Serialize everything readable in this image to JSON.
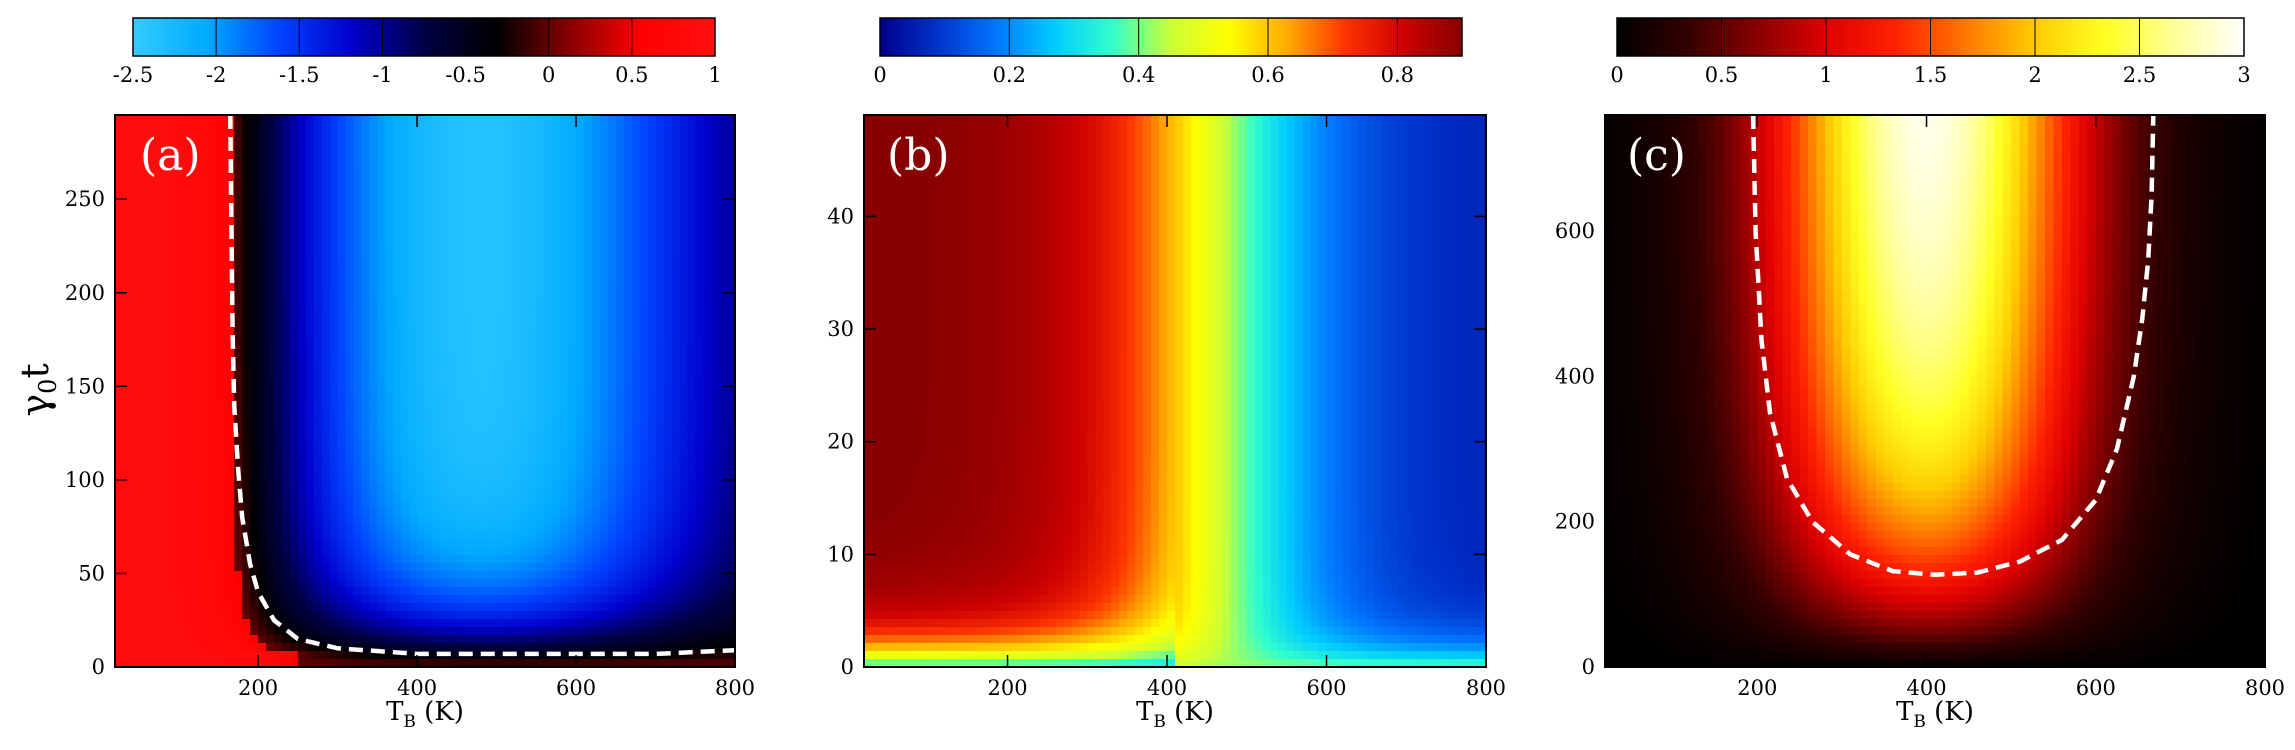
{
  "chart_data": [
    {
      "type": "heatmap",
      "panel_label": "(a)",
      "xlabel": {
        "main": "T",
        "sub": "B",
        "rest": " (K)"
      },
      "ylabel": {
        "main": "γ",
        "sub": "0",
        "rest": "t"
      },
      "xlim": [
        20,
        800
      ],
      "ylim": [
        0,
        295
      ],
      "xticks": [
        200,
        400,
        600,
        800
      ],
      "xtick_labels": [
        "200",
        "400",
        "600",
        "800"
      ],
      "yticks": [
        0,
        50,
        100,
        150,
        200,
        250
      ],
      "ytick_labels": [
        "0",
        "50",
        "100",
        "150",
        "200",
        "250"
      ],
      "colorbar": {
        "min": -2.5,
        "max": 1,
        "ticks": [
          -2.5,
          -2,
          -1.5,
          -1,
          -0.5,
          0,
          0.5,
          1
        ],
        "tick_labels": [
          "-2.5",
          "-2",
          "-1.5",
          "-1",
          "-0.5",
          "0",
          "0.5",
          "1"
        ],
        "colors": [
          "#33ccff",
          "#00aaff",
          "#0044ff",
          "#0000cc",
          "#000044",
          "#000000",
          "#880000",
          "#ff0000",
          "#ff1010"
        ]
      },
      "contour_zero": {
        "style": "dashed",
        "color": "#ffffff",
        "x": [
          165,
          166,
          168,
          170,
          175,
          180,
          190,
          200,
          220,
          250,
          300,
          400,
          500,
          600,
          700,
          800
        ],
        "y": [
          295,
          250,
          180,
          140,
          105,
          80,
          55,
          40,
          25,
          15,
          10,
          7,
          7,
          7,
          7,
          9
        ]
      }
    },
    {
      "type": "heatmap",
      "panel_label": "(b)",
      "xlabel": {
        "main": "T",
        "sub": "B",
        "rest": " (K)"
      },
      "xlim": [
        20,
        800
      ],
      "ylim": [
        0,
        49
      ],
      "xticks": [
        200,
        400,
        600,
        800
      ],
      "xtick_labels": [
        "200",
        "400",
        "600",
        "800"
      ],
      "yticks": [
        0,
        10,
        20,
        30,
        40
      ],
      "ytick_labels": [
        "0",
        "10",
        "20",
        "30",
        "40"
      ],
      "colorbar": {
        "min": 0,
        "max": 0.9,
        "ticks": [
          0,
          0.2,
          0.4,
          0.6,
          0.8
        ],
        "tick_labels": [
          "0",
          "0.2",
          "0.4",
          "0.6",
          "0.8"
        ],
        "colors": [
          "#000088",
          "#0033cc",
          "#0077ff",
          "#00ccff",
          "#33ffcc",
          "#ccff33",
          "#ffff00",
          "#ffaa00",
          "#ff3300",
          "#cc0000",
          "#880000"
        ]
      }
    },
    {
      "type": "heatmap",
      "panel_label": "(c)",
      "xlabel": {
        "main": "T",
        "sub": "B",
        "rest": " (K)"
      },
      "xlim": [
        20,
        800
      ],
      "ylim": [
        0,
        760
      ],
      "xticks": [
        200,
        400,
        600,
        800
      ],
      "xtick_labels": [
        "200",
        "400",
        "600",
        "800"
      ],
      "yticks": [
        0,
        200,
        400,
        600
      ],
      "ytick_labels": [
        "0",
        "200",
        "400",
        "600"
      ],
      "colorbar": {
        "min": 0,
        "max": 3,
        "ticks": [
          0,
          0.5,
          1,
          1.5,
          2,
          2.5,
          3
        ],
        "tick_labels": [
          "0",
          "0.5",
          "1",
          "1.5",
          "2",
          "2.5",
          "3"
        ],
        "colors": [
          "#000000",
          "#330000",
          "#880000",
          "#dd0000",
          "#ff2200",
          "#ff7700",
          "#ffcc00",
          "#ffff22",
          "#ffff99",
          "#ffffff"
        ]
      },
      "contour_threshold": {
        "style": "dashed",
        "color": "#ffffff",
        "x": [
          195,
          198,
          205,
          215,
          235,
          265,
          310,
          360,
          410,
          460,
          510,
          560,
          600,
          625,
          645,
          655,
          662,
          666,
          668
        ],
        "y": [
          760,
          600,
          450,
          350,
          260,
          200,
          155,
          132,
          127,
          130,
          145,
          175,
          230,
          300,
          400,
          480,
          560,
          650,
          760
        ]
      }
    }
  ]
}
